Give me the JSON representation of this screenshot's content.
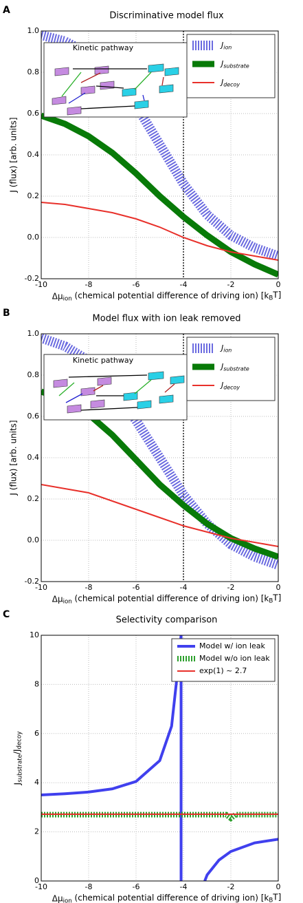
{
  "chart_data": [
    {
      "type": "line",
      "panel": "A",
      "title": "Discriminative model flux",
      "x_label": "Δμ_ion (chemical potential difference of driving ion) [k_BT]",
      "y_label": "J (flux) [arb. units]",
      "inset_title": "Kinetic pathway",
      "x": [
        -10,
        -9,
        -8,
        -7,
        -6,
        -5,
        -4,
        -3,
        -2,
        -1,
        0
      ],
      "series": [
        {
          "name": "J_ion",
          "color": "#6a6ae0",
          "values": [
            0.98,
            0.95,
            0.89,
            0.79,
            0.64,
            0.45,
            0.26,
            0.11,
            0.01,
            -0.05,
            -0.09
          ]
        },
        {
          "name": "J_substrate",
          "color": "#087a08",
          "values": [
            0.59,
            0.55,
            0.49,
            0.41,
            0.31,
            0.2,
            0.1,
            0.01,
            -0.07,
            -0.13,
            -0.18
          ]
        },
        {
          "name": "J_decoy",
          "color": "#e8302a",
          "values": [
            0.17,
            0.16,
            0.14,
            0.12,
            0.09,
            0.05,
            0.0,
            -0.04,
            -0.07,
            -0.09,
            -0.11
          ]
        }
      ],
      "vline": -4,
      "xlim": [
        -10,
        0
      ],
      "xticks": [
        -10,
        -8,
        -6,
        -4,
        -2,
        0
      ],
      "ylim": [
        -0.2,
        1.0
      ],
      "yticks": [
        -0.2,
        {
          "value": 0,
          "label": "0.0"
        },
        0.2,
        0.4,
        0.6,
        0.8,
        {
          "value": 1,
          "label": "1.0"
        }
      ],
      "grid": true
    },
    {
      "type": "line",
      "panel": "B",
      "title": "Model flux with ion leak removed",
      "x_label": "Δμ_ion (chemical potential difference of driving ion) [k_BT]",
      "y_label": "J (flux) [arb. units]",
      "inset_title": "Kinetic pathway",
      "x": [
        -10,
        -9,
        -8,
        -7,
        -6,
        -5,
        -4,
        -3,
        -2,
        -1,
        0
      ],
      "series": [
        {
          "name": "J_ion",
          "color": "#6a6ae0",
          "values": [
            0.98,
            0.94,
            0.87,
            0.75,
            0.58,
            0.4,
            0.22,
            0.08,
            -0.02,
            -0.08,
            -0.12
          ]
        },
        {
          "name": "J_substrate",
          "color": "#087a08",
          "values": [
            0.72,
            0.68,
            0.61,
            0.51,
            0.39,
            0.27,
            0.17,
            0.08,
            0.01,
            -0.04,
            -0.08
          ]
        },
        {
          "name": "J_decoy",
          "color": "#e8302a",
          "values": [
            0.27,
            0.25,
            0.23,
            0.19,
            0.15,
            0.11,
            0.07,
            0.04,
            0.01,
            -0.01,
            -0.03
          ]
        }
      ],
      "vline": -4,
      "xlim": [
        -10,
        0
      ],
      "xticks": [
        -10,
        -8,
        -6,
        -4,
        -2,
        0
      ],
      "ylim": [
        -0.2,
        1.0
      ],
      "yticks": [
        -0.2,
        {
          "value": 0,
          "label": "0.0"
        },
        0.2,
        0.4,
        0.6,
        0.8,
        {
          "value": 1,
          "label": "1.0"
        }
      ],
      "grid": true
    },
    {
      "type": "line",
      "panel": "C",
      "title": "Selectivity comparison",
      "x_label": "Δμ_ion (chemical potential difference of driving ion) [k_BT]",
      "y_label": "J_substrate/J_decoy",
      "series": [
        {
          "name": "Model w/ ion leak",
          "color": "#4040ee",
          "x": [
            -10,
            -9,
            -8,
            -7,
            -6,
            -5,
            -4.5,
            -4.25,
            -4.1,
            -4.1,
            -3.6,
            -3.1,
            -3,
            -2.5,
            -2,
            -1,
            0
          ],
          "values": [
            3.5,
            3.55,
            3.62,
            3.75,
            4.05,
            4.9,
            6.3,
            8.5,
            10,
            0,
            null,
            0,
            0.25,
            0.85,
            1.2,
            1.55,
            1.7
          ]
        },
        {
          "name": "Model w/o ion leak",
          "color": "#2ca02c",
          "x": [
            -10,
            -8,
            -6,
            -4,
            -2.2,
            -2,
            -1.8,
            0
          ],
          "values": [
            2.7,
            2.7,
            2.7,
            2.7,
            2.7,
            2.55,
            2.7,
            2.7
          ]
        },
        {
          "name": "exp(1) ~ 2.7",
          "color": "#e8302a",
          "x": [
            -10,
            0
          ],
          "values": [
            2.718,
            2.718
          ]
        }
      ],
      "xlim": [
        -10,
        0
      ],
      "xticks": [
        -10,
        -8,
        -6,
        -4,
        -2,
        0
      ],
      "ylim": [
        0,
        10
      ],
      "yticks": [
        0,
        2,
        4,
        6,
        8,
        10
      ],
      "grid": true
    }
  ]
}
